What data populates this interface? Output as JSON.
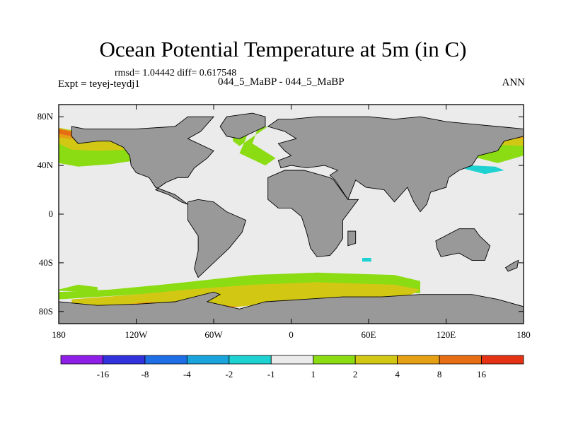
{
  "header": {
    "title": "Ocean Potential Temperature at 5m (in C)",
    "stats": "rmsd= 1.04442 diff= 0.617548",
    "expt": "Expt = teyej-teydj1",
    "case": "044_5_MaBP - 044_5_MaBP",
    "season": "ANN"
  },
  "chart_data": {
    "type": "heatmap",
    "title": "Ocean Potential Temperature at 5m (in C)",
    "projection": "cylindrical-equidistant",
    "xlim": [
      -180,
      180
    ],
    "ylim": [
      -90,
      90
    ],
    "x_ticks": [
      {
        "value": -180,
        "label": "180"
      },
      {
        "value": -120,
        "label": "120W"
      },
      {
        "value": -60,
        "label": "60W"
      },
      {
        "value": 0,
        "label": "0"
      },
      {
        "value": 60,
        "label": "60E"
      },
      {
        "value": 120,
        "label": "120E"
      },
      {
        "value": 180,
        "label": "180"
      }
    ],
    "y_ticks": [
      {
        "value": 80,
        "label": "80N"
      },
      {
        "value": 40,
        "label": "40N"
      },
      {
        "value": 0,
        "label": "0"
      },
      {
        "value": -40,
        "label": "40S"
      },
      {
        "value": -80,
        "label": "80S"
      }
    ],
    "colorbar": {
      "levels": [
        "-16",
        "-8",
        "-4",
        "-2",
        "-1",
        "1",
        "2",
        "4",
        "8",
        "16"
      ],
      "colors": [
        "#8f1fe6",
        "#3232dc",
        "#1e6ee6",
        "#19a5dc",
        "#1ed2d2",
        "#ebebeb",
        "#8cdc14",
        "#d2c814",
        "#e6a014",
        "#e66e14",
        "#e63214"
      ]
    },
    "land_color": "#999999",
    "regions": [
      {
        "label": "1 to 2",
        "color": "#8cdc14",
        "polygon": [
          [
            -180,
            -62
          ],
          [
            -165,
            -58
          ],
          [
            -150,
            -60
          ],
          [
            -150,
            -64
          ],
          [
            -180,
            -63
          ]
        ]
      },
      {
        "label": "1 to 2",
        "color": "#8cdc14",
        "polygon": [
          [
            -100,
            -58
          ],
          [
            -30,
            -50
          ],
          [
            20,
            -48
          ],
          [
            80,
            -50
          ],
          [
            100,
            -55
          ],
          [
            100,
            -65
          ],
          [
            40,
            -64
          ],
          [
            -20,
            -62
          ],
          [
            -80,
            -64
          ],
          [
            -120,
            -66
          ],
          [
            -150,
            -68
          ],
          [
            -180,
            -70
          ],
          [
            -180,
            -64
          ],
          [
            -140,
            -62
          ]
        ]
      },
      {
        "label": "2 to 4",
        "color": "#d2c814",
        "polygon": [
          [
            -170,
            -70
          ],
          [
            -120,
            -66
          ],
          [
            -80,
            -62
          ],
          [
            -30,
            -58
          ],
          [
            20,
            -56
          ],
          [
            80,
            -58
          ],
          [
            100,
            -62
          ],
          [
            90,
            -68
          ],
          [
            60,
            -72
          ],
          [
            20,
            -70
          ],
          [
            -40,
            -76
          ],
          [
            -100,
            -78
          ],
          [
            -160,
            -80
          ],
          [
            -170,
            -78
          ]
        ]
      },
      {
        "label": "4 to 8",
        "color": "#e6a014",
        "polygon": [
          [
            -145,
            -76
          ],
          [
            -110,
            -72
          ],
          [
            -80,
            -74
          ],
          [
            -60,
            -74
          ],
          [
            -40,
            -76
          ],
          [
            -80,
            -80
          ],
          [
            -120,
            -80
          ],
          [
            -150,
            -80
          ]
        ]
      },
      {
        "label": "1 to 2",
        "color": "#8cdc14",
        "polygon": [
          [
            -180,
            71
          ],
          [
            -140,
            63
          ],
          [
            -120,
            55
          ],
          [
            -115,
            45
          ],
          [
            -140,
            41
          ],
          [
            -165,
            39
          ],
          [
            -180,
            42
          ]
        ]
      },
      {
        "label": "2 to 4",
        "color": "#d2c814",
        "polygon": [
          [
            -180,
            71
          ],
          [
            -150,
            64
          ],
          [
            -125,
            59
          ],
          [
            -125,
            53
          ],
          [
            -150,
            52
          ],
          [
            -170,
            53
          ],
          [
            -180,
            58
          ]
        ]
      },
      {
        "label": "4 to 8",
        "color": "#e6a014",
        "polygon": [
          [
            -180,
            70
          ],
          [
            -165,
            66
          ],
          [
            -150,
            63
          ],
          [
            -160,
            60
          ],
          [
            -180,
            63
          ]
        ]
      },
      {
        "label": "8 to 16",
        "color": "#e66e14",
        "polygon": [
          [
            -180,
            70
          ],
          [
            -170,
            68
          ],
          [
            -170,
            64
          ],
          [
            -180,
            66
          ]
        ]
      },
      {
        "label": "1 to 2",
        "color": "#8cdc14",
        "polygon": [
          [
            138,
            58
          ],
          [
            160,
            60
          ],
          [
            180,
            66
          ],
          [
            180,
            48
          ],
          [
            160,
            42
          ],
          [
            145,
            46
          ],
          [
            135,
            55
          ]
        ]
      },
      {
        "label": "2 to 4",
        "color": "#d2c814",
        "polygon": [
          [
            140,
            62
          ],
          [
            160,
            63
          ],
          [
            180,
            68
          ],
          [
            180,
            56
          ],
          [
            160,
            57
          ],
          [
            145,
            58
          ]
        ]
      },
      {
        "label": "4 to 8",
        "color": "#e6a014",
        "polygon": [
          [
            155,
            64
          ],
          [
            165,
            66
          ],
          [
            180,
            70
          ],
          [
            180,
            62
          ],
          [
            165,
            62
          ]
        ]
      },
      {
        "label": "-2 to -1",
        "color": "#1ed2d2",
        "polygon": [
          [
            124,
            46
          ],
          [
            140,
            40
          ],
          [
            158,
            39
          ],
          [
            165,
            36
          ],
          [
            150,
            33
          ],
          [
            135,
            37
          ],
          [
            124,
            44
          ]
        ]
      },
      {
        "label": "-2 to -1",
        "color": "#1ed2d2",
        "polygon": [
          [
            55,
            -36
          ],
          [
            62,
            -36
          ],
          [
            62,
            -39
          ],
          [
            55,
            -39
          ]
        ]
      },
      {
        "label": "-2 to -1",
        "color": "#1ed2d2",
        "polygon": [
          [
            62,
            78
          ],
          [
            67,
            78
          ],
          [
            67,
            76
          ],
          [
            62,
            76
          ]
        ]
      },
      {
        "label": "1 to 2",
        "color": "#8cdc14",
        "polygon": [
          [
            -46,
            68
          ],
          [
            -36,
            78
          ],
          [
            -30,
            80
          ],
          [
            -35,
            62
          ],
          [
            -40,
            50
          ],
          [
            -20,
            40
          ],
          [
            -12,
            46
          ],
          [
            -30,
            58
          ],
          [
            -26,
            70
          ],
          [
            -18,
            72
          ],
          [
            -40,
            56
          ],
          [
            -45,
            60
          ]
        ]
      },
      {
        "label": "1 to 2",
        "color": "#8cdc14",
        "polygon": [
          [
            -70,
            -20
          ],
          [
            -68,
            -18
          ],
          [
            -68,
            -24
          ],
          [
            -70,
            -24
          ]
        ]
      }
    ],
    "land": [
      [
        [
          -170,
          72
        ],
        [
          -160,
          70
        ],
        [
          -140,
          70
        ],
        [
          -120,
          70
        ],
        [
          -90,
          72
        ],
        [
          -80,
          80
        ],
        [
          -60,
          80
        ],
        [
          -70,
          68
        ],
        [
          -80,
          62
        ],
        [
          -60,
          52
        ],
        [
          -65,
          46
        ],
        [
          -75,
          38
        ],
        [
          -80,
          30
        ],
        [
          -88,
          30
        ],
        [
          -97,
          26
        ],
        [
          -105,
          20
        ],
        [
          -95,
          16
        ],
        [
          -85,
          10
        ],
        [
          -80,
          8
        ],
        [
          -90,
          16
        ],
        [
          -105,
          22
        ],
        [
          -110,
          30
        ],
        [
          -120,
          34
        ],
        [
          -124,
          40
        ],
        [
          -125,
          48
        ],
        [
          -130,
          55
        ],
        [
          -140,
          60
        ],
        [
          -150,
          60
        ],
        [
          -165,
          58
        ],
        [
          -170,
          64
        ]
      ],
      [
        [
          -80,
          10
        ],
        [
          -72,
          12
        ],
        [
          -60,
          10
        ],
        [
          -50,
          2
        ],
        [
          -35,
          -5
        ],
        [
          -38,
          -15
        ],
        [
          -48,
          -28
        ],
        [
          -58,
          -38
        ],
        [
          -66,
          -46
        ],
        [
          -72,
          -52
        ],
        [
          -75,
          -45
        ],
        [
          -72,
          -30
        ],
        [
          -72,
          -18
        ],
        [
          -80,
          -5
        ],
        [
          -80,
          2
        ]
      ],
      [
        [
          -50,
          80
        ],
        [
          -30,
          83
        ],
        [
          -20,
          80
        ],
        [
          -20,
          72
        ],
        [
          -40,
          62
        ],
        [
          -50,
          64
        ],
        [
          -55,
          72
        ]
      ],
      [
        [
          -18,
          72
        ],
        [
          -10,
          78
        ],
        [
          0,
          78
        ],
        [
          20,
          80
        ],
        [
          40,
          80
        ],
        [
          60,
          80
        ],
        [
          80,
          78
        ],
        [
          100,
          80
        ],
        [
          120,
          76
        ],
        [
          140,
          74
        ],
        [
          160,
          72
        ],
        [
          180,
          70
        ],
        [
          180,
          64
        ],
        [
          165,
          60
        ],
        [
          160,
          52
        ],
        [
          145,
          48
        ],
        [
          140,
          40
        ],
        [
          130,
          36
        ],
        [
          122,
          30
        ],
        [
          120,
          22
        ],
        [
          108,
          18
        ],
        [
          105,
          8
        ],
        [
          100,
          2
        ],
        [
          95,
          10
        ],
        [
          90,
          22
        ],
        [
          80,
          10
        ],
        [
          72,
          20
        ],
        [
          58,
          22
        ],
        [
          50,
          28
        ],
        [
          44,
          12
        ],
        [
          34,
          28
        ],
        [
          30,
          32
        ],
        [
          36,
          36
        ],
        [
          26,
          40
        ],
        [
          12,
          38
        ],
        [
          0,
          40
        ],
        [
          -8,
          38
        ],
        [
          -10,
          44
        ],
        [
          0,
          48
        ],
        [
          -5,
          52
        ],
        [
          -10,
          58
        ],
        [
          4,
          62
        ],
        [
          -5,
          68
        ]
      ],
      [
        [
          -18,
          30
        ],
        [
          -5,
          36
        ],
        [
          10,
          36
        ],
        [
          30,
          30
        ],
        [
          33,
          28
        ],
        [
          44,
          12
        ],
        [
          52,
          12
        ],
        [
          40,
          -5
        ],
        [
          40,
          -20
        ],
        [
          35,
          -28
        ],
        [
          30,
          -34
        ],
        [
          20,
          -35
        ],
        [
          15,
          -28
        ],
        [
          12,
          -15
        ],
        [
          8,
          -2
        ],
        [
          0,
          5
        ],
        [
          -10,
          5
        ],
        [
          -18,
          12
        ],
        [
          -18,
          22
        ]
      ],
      [
        [
          44,
          -14
        ],
        [
          50,
          -14
        ],
        [
          50,
          -24
        ],
        [
          44,
          -26
        ]
      ],
      [
        [
          112,
          -22
        ],
        [
          130,
          -12
        ],
        [
          142,
          -12
        ],
        [
          146,
          -18
        ],
        [
          154,
          -26
        ],
        [
          150,
          -38
        ],
        [
          140,
          -38
        ],
        [
          130,
          -32
        ],
        [
          116,
          -35
        ],
        [
          113,
          -28
        ]
      ],
      [
        [
          -180,
          -72
        ],
        [
          -150,
          -75
        ],
        [
          -120,
          -74
        ],
        [
          -90,
          -72
        ],
        [
          -60,
          -64
        ],
        [
          -55,
          -66
        ],
        [
          -65,
          -72
        ],
        [
          -40,
          -78
        ],
        [
          -20,
          -72
        ],
        [
          10,
          -70
        ],
        [
          40,
          -68
        ],
        [
          70,
          -68
        ],
        [
          100,
          -66
        ],
        [
          140,
          -66
        ],
        [
          160,
          -70
        ],
        [
          180,
          -76
        ],
        [
          180,
          -90
        ],
        [
          -180,
          -90
        ]
      ],
      [
        [
          166,
          -44
        ],
        [
          172,
          -40
        ],
        [
          176,
          -38
        ],
        [
          175,
          -44
        ],
        [
          168,
          -47
        ]
      ]
    ]
  }
}
